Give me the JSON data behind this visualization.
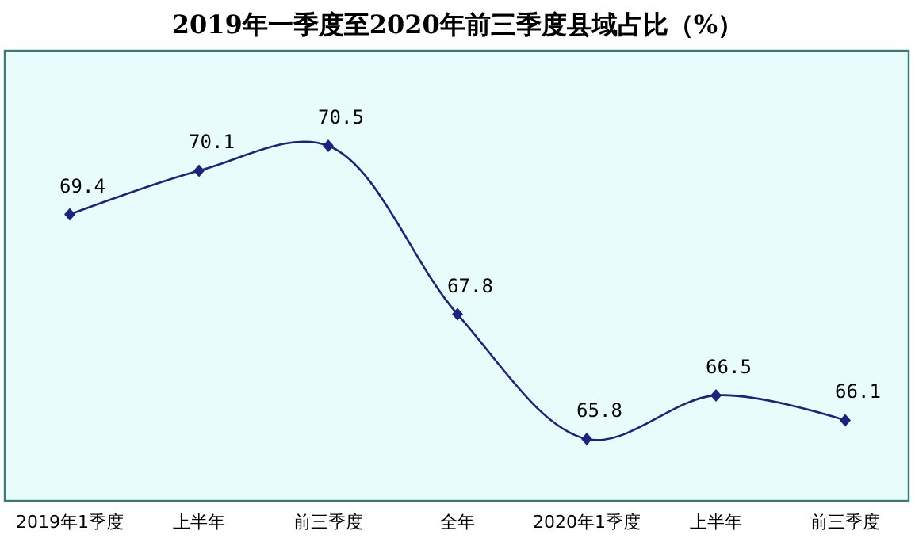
{
  "chart_data": {
    "type": "line",
    "title": "2019年一季度至2020年前三季度县域占比（%）",
    "categories": [
      "2019年1季度",
      "上半年",
      "前三季度",
      "全年",
      "2020年1季度",
      "上半年",
      "前三季度"
    ],
    "series": [
      {
        "color": "#1a237e",
        "values": [
          69.4,
          70.1,
          70.5,
          67.8,
          65.8,
          66.5,
          66.1
        ]
      }
    ],
    "data_labels": true,
    "marker": "diamond"
  }
}
